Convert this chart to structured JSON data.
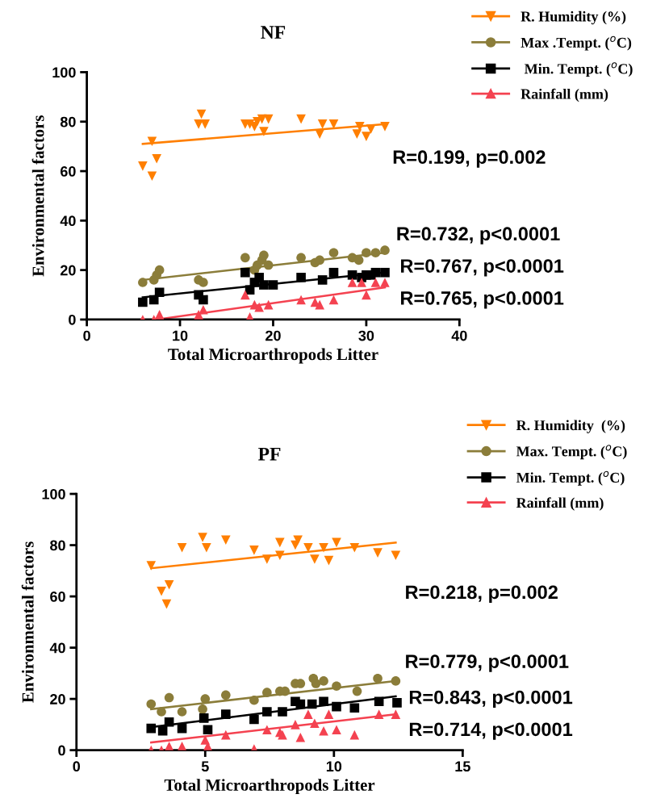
{
  "chart_data": [
    {
      "type": "scatter",
      "title": "NF",
      "xlabel": "Total Microarthropods Litter",
      "ylabel": "Environmental factors",
      "xlim": [
        0,
        40
      ],
      "xticks": [
        0,
        10,
        20,
        30,
        40
      ],
      "ylim": [
        0,
        100
      ],
      "yticks": [
        0,
        20,
        40,
        60,
        80,
        100
      ],
      "grid": false,
      "legend": "top right",
      "annotations": [
        "R=0.199, p=0.002",
        "R=0.732, p<0.0001",
        "R=0.767, p<0.0001",
        "R=0.765, p<0.0001"
      ],
      "series": [
        {
          "name": "R. Humidity (%)",
          "color": "#ff7f00",
          "marker": "triangle_down",
          "x": [
            6,
            7,
            7,
            7.5,
            12,
            12.3,
            12.7,
            17,
            17.5,
            18,
            18.3,
            18.8,
            19,
            19.5,
            23,
            25,
            25.3,
            26.5,
            29,
            29.3,
            30,
            30.5,
            32
          ],
          "values": [
            62,
            58,
            72,
            65,
            79,
            83,
            79,
            79,
            79,
            78,
            80,
            81,
            76,
            81,
            81,
            75,
            79,
            79,
            75,
            78,
            74,
            77,
            78
          ]
        },
        {
          "name": "Max .Tempt. ($^{o}$C)",
          "color": "#8b7d3a",
          "marker": "circle",
          "x": [
            6,
            7.2,
            7.5,
            7.8,
            12,
            12.5,
            17,
            18,
            18.3,
            18.8,
            19,
            19.5,
            23,
            24.5,
            25,
            26.5,
            28.5,
            29.2,
            30,
            31,
            32
          ],
          "values": [
            15,
            16,
            18,
            20,
            16,
            15,
            25,
            20,
            22,
            24,
            26,
            22,
            25,
            23,
            24,
            27,
            25,
            24,
            27,
            27,
            28
          ]
        },
        {
          "name": " Min. Tempt. ($^{o}$C)",
          "color": "#000000",
          "marker": "square",
          "x": [
            6,
            7.2,
            7.8,
            12,
            12.5,
            17,
            17.5,
            18,
            18.5,
            19,
            20,
            23,
            25,
            25.3,
            26.5,
            28.5,
            29.5,
            30,
            30.5,
            31,
            32
          ],
          "values": [
            7,
            8,
            11,
            10,
            8,
            19,
            12,
            15,
            17,
            14,
            14,
            17,
            null,
            16,
            19,
            18,
            17,
            18,
            18,
            19,
            19
          ]
        },
        {
          "name": "Rainfall (mm)",
          "color": "#f44250",
          "marker": "triangle",
          "x": [
            6,
            7.2,
            7.8,
            12,
            12.5,
            17,
            17.5,
            18,
            18.5,
            19.5,
            23,
            24.5,
            25,
            26.5,
            28.5,
            29.5,
            30,
            31,
            32
          ],
          "values": [
            0,
            0,
            2,
            2,
            4,
            10,
            1,
            6,
            5,
            6,
            8,
            7,
            6,
            8,
            15,
            15,
            10,
            15,
            15
          ]
        },
        {
          "type": "line",
          "color": "#ff7f00",
          "x": [
            6,
            32
          ],
          "values": [
            71,
            79
          ]
        },
        {
          "type": "line",
          "color": "#8b7d3a",
          "x": [
            6,
            32
          ],
          "values": [
            16,
            27
          ]
        },
        {
          "type": "line",
          "color": "#000000",
          "x": [
            6,
            32
          ],
          "values": [
            9,
            19
          ]
        },
        {
          "type": "line",
          "color": "#f44250",
          "x": [
            7.5,
            32
          ],
          "values": [
            0,
            13
          ]
        }
      ]
    },
    {
      "type": "scatter",
      "title": "PF",
      "xlabel": "Total Microarthropods Litter",
      "ylabel": "Environmental factors",
      "xlim": [
        0,
        15
      ],
      "xticks": [
        0,
        5,
        10,
        15
      ],
      "ylim": [
        0,
        100
      ],
      "yticks": [
        0,
        20,
        40,
        60,
        80,
        100
      ],
      "grid": false,
      "legend": "top right",
      "annotations": [
        "R=0.218, p=0.002",
        "R=0.779, p<0.0001",
        "R=0.843, p<0.0001",
        "R=0.714, p<0.0001"
      ],
      "series": [
        {
          "name": "R. Humidity  (%)",
          "color": "#ff7f00",
          "marker": "triangle_down",
          "x": [
            2.9,
            3.3,
            3.6,
            3.5,
            4.1,
            4.9,
            5.05,
            5.8,
            6.9,
            7.4,
            7.9,
            7.9,
            8.5,
            8.6,
            9.0,
            9.25,
            9.6,
            9.8,
            10.1,
            10.8,
            11.7,
            12.4
          ],
          "values": [
            72,
            62,
            64.5,
            57,
            79,
            83,
            79,
            82,
            78,
            74.5,
            76,
            81,
            80,
            82,
            79,
            74.5,
            79,
            74,
            81,
            79,
            77,
            76
          ]
        },
        {
          "name": "Max. Tempt. ($^{o}$C)",
          "color": "#8b7d3a",
          "marker": "circle",
          "x": [
            2.9,
            3.3,
            3.6,
            4.1,
            4.9,
            5.0,
            5.8,
            6.9,
            7.4,
            7.9,
            8.1,
            8.5,
            8.7,
            9.2,
            9.3,
            9.6,
            10.1,
            10.9,
            11.7,
            12.4
          ],
          "values": [
            18,
            15,
            20.5,
            15,
            16,
            20,
            21.5,
            19.5,
            22.5,
            23,
            23,
            26,
            26,
            28,
            26,
            27,
            25,
            23,
            28,
            27
          ]
        },
        {
          "name": "Min. Tempt. ($^{o}$C)",
          "color": "#000000",
          "marker": "square",
          "x": [
            2.9,
            3.35,
            3.6,
            4.1,
            4.95,
            5.1,
            5.8,
            6.9,
            7.4,
            7.9,
            8.0,
            8.5,
            8.7,
            9.15,
            9.6,
            10.1,
            10.8,
            11.75,
            12.45
          ],
          "values": [
            8.5,
            7.5,
            11,
            8.5,
            12.5,
            8,
            14,
            12,
            15,
            null,
            15,
            19,
            18,
            18,
            19,
            17,
            16.5,
            19,
            18.5
          ]
        },
        {
          "name": "Rainfall (mm)",
          "color": "#f44250",
          "marker": "triangle",
          "x": [
            2.9,
            3.3,
            3.6,
            4.1,
            5.0,
            5.1,
            5.8,
            6.9,
            7.4,
            7.9,
            8.0,
            8.5,
            8.7,
            9.0,
            9.25,
            9.6,
            9.8,
            10.1,
            10.8,
            11.75,
            12.4
          ],
          "values": [
            0,
            0,
            1.5,
            1.5,
            4,
            1.5,
            6,
            0.5,
            8,
            7,
            6,
            10,
            5,
            14,
            10.5,
            7.5,
            14,
            8,
            6,
            14,
            14
          ]
        },
        {
          "type": "line",
          "color": "#ff7f00",
          "x": [
            2.9,
            12.4
          ],
          "values": [
            71,
            81
          ]
        },
        {
          "type": "line",
          "color": "#8b7d3a",
          "x": [
            2.9,
            12.4
          ],
          "values": [
            16,
            27
          ]
        },
        {
          "type": "line",
          "color": "#000000",
          "x": [
            2.9,
            12.4
          ],
          "values": [
            9,
            21
          ]
        },
        {
          "type": "line",
          "color": "#f44250",
          "x": [
            2.9,
            12.4
          ],
          "values": [
            3,
            14
          ]
        }
      ]
    }
  ]
}
